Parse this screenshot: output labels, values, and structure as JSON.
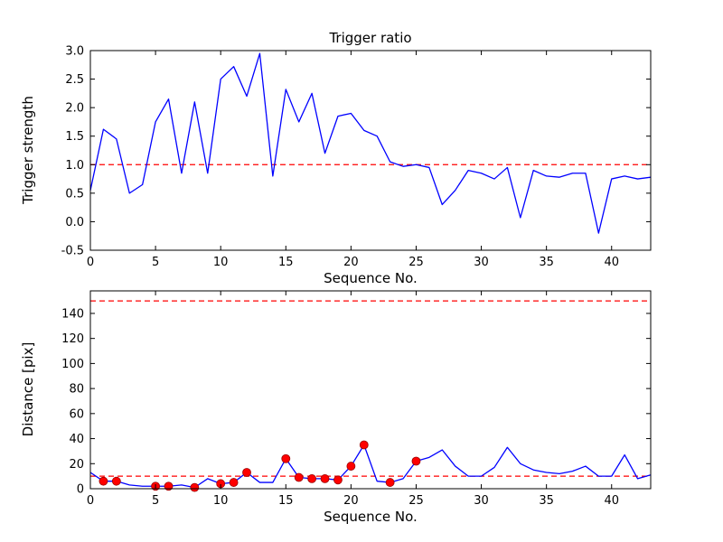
{
  "figure": {
    "background": "#ffffff",
    "frame_color": "#000000"
  },
  "chart_data": [
    {
      "type": "line",
      "title": "Trigger ratio",
      "xlabel": "Sequence No.",
      "ylabel": "Trigger strength",
      "xlim": [
        0,
        43
      ],
      "ylim": [
        -0.5,
        3.0
      ],
      "grid": false,
      "legend": null,
      "line_color": "#0000ff",
      "hline_color": "#ff0000",
      "marker_color": "#ff0000",
      "xticks": [
        0,
        5,
        10,
        15,
        20,
        25,
        30,
        35,
        40
      ],
      "xtick_labels": [
        "0",
        "5",
        "10",
        "15",
        "20",
        "25",
        "30",
        "35",
        "40"
      ],
      "yticks": [
        -0.5,
        0.0,
        0.5,
        1.0,
        1.5,
        2.0,
        2.5,
        3.0
      ],
      "ytick_labels": [
        "-0.5",
        "0.0",
        "0.5",
        "1.0",
        "1.5",
        "2.0",
        "2.5",
        "3.0"
      ],
      "x": [
        0,
        1,
        2,
        3,
        4,
        5,
        6,
        7,
        8,
        9,
        10,
        11,
        12,
        13,
        14,
        15,
        16,
        17,
        18,
        19,
        20,
        21,
        22,
        23,
        24,
        25,
        26,
        27,
        28,
        29,
        30,
        31,
        32,
        33,
        34,
        35,
        36,
        37,
        38,
        39,
        40,
        41,
        42,
        43
      ],
      "values": [
        0.55,
        1.62,
        1.45,
        0.5,
        0.65,
        1.75,
        2.15,
        0.85,
        2.1,
        0.85,
        2.5,
        2.72,
        2.2,
        2.95,
        0.8,
        2.32,
        1.75,
        2.25,
        1.2,
        1.85,
        1.9,
        1.6,
        1.5,
        1.05,
        0.97,
        1.0,
        0.95,
        0.3,
        0.55,
        0.9,
        0.85,
        0.75,
        0.95,
        0.07,
        0.9,
        0.8,
        0.78,
        0.85,
        0.85,
        -0.2,
        0.75,
        0.8,
        0.75,
        0.78
      ],
      "hlines": [
        1.0
      ],
      "marker_x": []
    },
    {
      "type": "line",
      "title": "",
      "xlabel": "Sequence No.",
      "ylabel": "Distance [pix]",
      "xlim": [
        0,
        43
      ],
      "ylim": [
        0,
        158
      ],
      "grid": false,
      "legend": null,
      "line_color": "#0000ff",
      "hline_color": "#ff0000",
      "marker_color": "#ff0000",
      "xticks": [
        0,
        5,
        10,
        15,
        20,
        25,
        30,
        35,
        40
      ],
      "xtick_labels": [
        "0",
        "5",
        "10",
        "15",
        "20",
        "25",
        "30",
        "35",
        "40"
      ],
      "yticks": [
        0,
        20,
        40,
        60,
        80,
        100,
        120,
        140
      ],
      "ytick_labels": [
        "0",
        "20",
        "40",
        "60",
        "80",
        "100",
        "120",
        "140"
      ],
      "x": [
        0,
        1,
        2,
        3,
        4,
        5,
        6,
        7,
        8,
        9,
        10,
        11,
        12,
        13,
        14,
        15,
        16,
        17,
        18,
        19,
        20,
        21,
        22,
        23,
        24,
        25,
        26,
        27,
        28,
        29,
        30,
        31,
        32,
        33,
        34,
        35,
        36,
        37,
        38,
        39,
        40,
        41,
        42,
        43
      ],
      "values": [
        13,
        6,
        6,
        3,
        2,
        2,
        2,
        3,
        1,
        8,
        4,
        5,
        13,
        5,
        5,
        24,
        9,
        8,
        8,
        7,
        18,
        35,
        6,
        5,
        8,
        22,
        25,
        31,
        18,
        10,
        10,
        17,
        33,
        20,
        15,
        13,
        12,
        14,
        18,
        10,
        10,
        27,
        8,
        11
      ],
      "hlines": [
        150,
        10
      ],
      "marker_x": [
        1,
        2,
        5,
        6,
        8,
        10,
        11,
        12,
        15,
        16,
        17,
        18,
        19,
        20,
        21,
        23,
        25
      ]
    }
  ]
}
